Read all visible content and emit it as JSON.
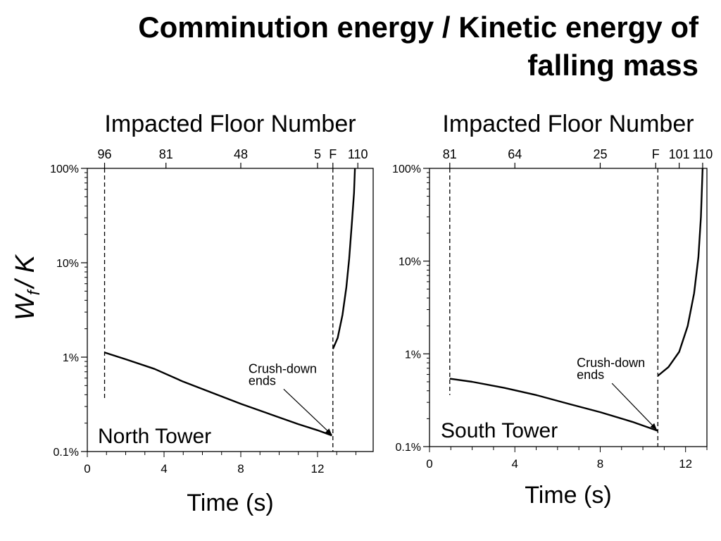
{
  "slide": {
    "title_line1": "Comminution energy / Kinetic energy of",
    "title_line2": "falling mass"
  },
  "ylabel": {
    "main": "W",
    "sub": "f",
    "rest": "/ K"
  },
  "chart_data": [
    {
      "type": "line",
      "name": "North Tower",
      "x_label": "Time (s)",
      "top_label": "Impacted Floor Number",
      "y_scale": "log",
      "ylim_percent": [
        0.1,
        100
      ],
      "xlim": [
        0,
        14.9
      ],
      "x_ticks": [
        0,
        4,
        8,
        12
      ],
      "y_ticks": [
        {
          "value": 0.1,
          "label": "0.1%"
        },
        {
          "value": 1,
          "label": "1%"
        },
        {
          "value": 10,
          "label": "10%"
        },
        {
          "value": 100,
          "label": "100%"
        }
      ],
      "top_ticks": [
        {
          "t": 0.9,
          "label": "96"
        },
        {
          "t": 4.1,
          "label": "81"
        },
        {
          "t": 8.0,
          "label": "48"
        },
        {
          "t": 12.0,
          "label": "5"
        },
        {
          "t": 12.8,
          "label": "F"
        },
        {
          "t": 14.1,
          "label": "110"
        }
      ],
      "vlines": [
        0.9,
        12.8
      ],
      "annotation": {
        "line1": "Crush-down",
        "line2": "ends",
        "text_t": 8.4,
        "text_v": 0.68,
        "arrow_t": 12.75,
        "arrow_v": 0.15
      },
      "tower_label": "North Tower",
      "crush_down": [
        [
          0.9,
          1.12
        ],
        [
          2.0,
          0.95
        ],
        [
          3.5,
          0.75
        ],
        [
          5.0,
          0.55
        ],
        [
          6.5,
          0.42
        ],
        [
          8.0,
          0.32
        ],
        [
          9.5,
          0.25
        ],
        [
          11.0,
          0.195
        ],
        [
          12.0,
          0.168
        ],
        [
          12.75,
          0.148
        ]
      ],
      "crush_up": [
        [
          12.8,
          1.22
        ],
        [
          13.05,
          1.6
        ],
        [
          13.3,
          2.8
        ],
        [
          13.5,
          5.5
        ],
        [
          13.65,
          11
        ],
        [
          13.8,
          28
        ],
        [
          13.9,
          55
        ],
        [
          13.95,
          100
        ]
      ]
    },
    {
      "type": "line",
      "name": "South Tower",
      "x_label": "Time (s)",
      "top_label": "Impacted Floor Number",
      "y_scale": "log",
      "ylim_percent": [
        0.1,
        100
      ],
      "xlim": [
        0,
        13.0
      ],
      "x_ticks": [
        0,
        4,
        8,
        12
      ],
      "y_ticks": [
        {
          "value": 0.1,
          "label": "0.1%"
        },
        {
          "value": 1,
          "label": "1%"
        },
        {
          "value": 10,
          "label": "10%"
        },
        {
          "value": 100,
          "label": "100%"
        }
      ],
      "top_ticks": [
        {
          "t": 0.95,
          "label": "81"
        },
        {
          "t": 4.0,
          "label": "64"
        },
        {
          "t": 8.0,
          "label": "25"
        },
        {
          "t": 10.6,
          "label": "F"
        },
        {
          "t": 11.7,
          "label": "101"
        },
        {
          "t": 12.8,
          "label": "110"
        }
      ],
      "vlines": [
        0.95,
        10.7
      ],
      "annotation": {
        "line1": "Crush-down",
        "line2": "ends",
        "text_t": 6.9,
        "text_v": 0.72,
        "arrow_t": 10.65,
        "arrow_v": 0.152
      },
      "tower_label": "South Tower",
      "crush_down": [
        [
          0.95,
          0.54
        ],
        [
          2.0,
          0.5
        ],
        [
          3.5,
          0.43
        ],
        [
          5.0,
          0.36
        ],
        [
          6.5,
          0.29
        ],
        [
          8.0,
          0.235
        ],
        [
          9.5,
          0.185
        ],
        [
          10.7,
          0.148
        ]
      ],
      "crush_up": [
        [
          10.7,
          0.58
        ],
        [
          11.2,
          0.72
        ],
        [
          11.7,
          1.05
        ],
        [
          12.1,
          2.0
        ],
        [
          12.4,
          4.5
        ],
        [
          12.6,
          11
        ],
        [
          12.72,
          30
        ],
        [
          12.8,
          100
        ]
      ]
    }
  ]
}
